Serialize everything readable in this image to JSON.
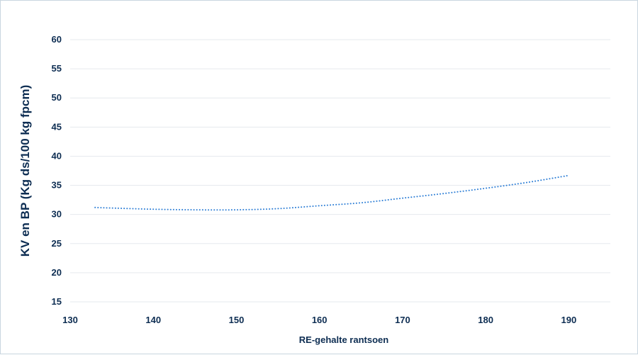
{
  "chart_data": {
    "type": "line",
    "title": "",
    "xlabel": "RE-gehalte rantsoen",
    "ylabel": "KV en BP (Kg ds/100 kg fpcm)",
    "xlim": [
      130,
      195
    ],
    "ylim": [
      15,
      60
    ],
    "x_ticks": [
      130,
      140,
      150,
      160,
      170,
      180,
      190
    ],
    "y_ticks": [
      15,
      20,
      25,
      30,
      35,
      40,
      45,
      50,
      55,
      60
    ],
    "grid": true,
    "legend": "none",
    "series": [
      {
        "line_style": "dotted",
        "color": "#2f7fd6",
        "x": [
          133,
          135,
          140,
          145,
          150,
          155,
          160,
          165,
          170,
          175,
          180,
          185,
          190
        ],
        "y": [
          31.2,
          31.1,
          30.9,
          30.8,
          30.8,
          31.0,
          31.5,
          32.0,
          32.8,
          33.6,
          34.5,
          35.5,
          36.7
        ]
      }
    ]
  }
}
